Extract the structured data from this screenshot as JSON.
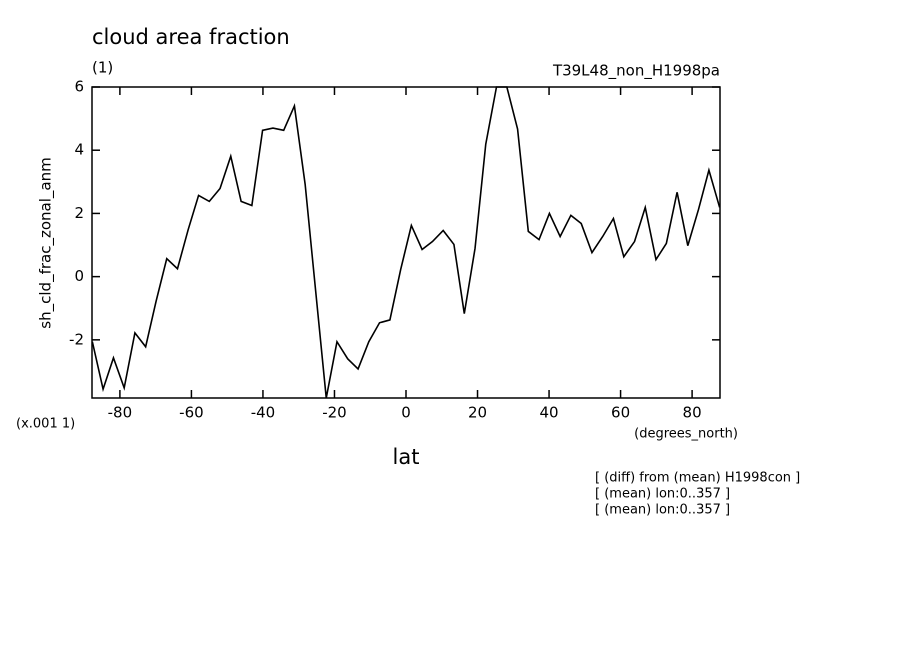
{
  "chart_data": {
    "type": "line",
    "title": "cloud area fraction",
    "subtitle": "(1)",
    "run_label": "T39L48_non_H1998pa",
    "y_label": "sh_cld_frac_zonal_anm",
    "y_scale_label": "(x.001 1)",
    "x_unit_label": "(degrees_north)",
    "x_label": "lat",
    "annotations": [
      "[ (diff) from (mean) H1998con ]",
      "[ (mean) lon:0..357 ]",
      "[ (mean) lon:0..357 ]"
    ],
    "xlim": [
      -87.8,
      87.8
    ],
    "ylim": [
      -3.84,
      6
    ],
    "xticks": [
      -80,
      -60,
      -40,
      -20,
      0,
      20,
      40,
      60,
      80
    ],
    "yticks": [
      -2,
      0,
      2,
      4,
      6
    ],
    "color": "#000000",
    "x": [
      -87.7,
      -84.7,
      -81.8,
      -78.8,
      -75.8,
      -72.8,
      -69.9,
      -66.9,
      -63.9,
      -60.9,
      -58.0,
      -55.0,
      -52.0,
      -49.0,
      -46.1,
      -43.1,
      -40.1,
      -37.2,
      -34.2,
      -31.2,
      -28.2,
      -25.3,
      -22.3,
      -19.3,
      -16.3,
      -13.4,
      -10.4,
      -7.4,
      -4.5,
      -1.5,
      1.5,
      4.5,
      7.4,
      10.4,
      13.4,
      16.3,
      19.3,
      22.3,
      25.3,
      28.2,
      31.2,
      34.2,
      37.2,
      40.1,
      43.1,
      46.1,
      49.0,
      52.0,
      55.0,
      58.0,
      60.9,
      63.9,
      66.9,
      69.9,
      72.8,
      75.8,
      78.8,
      81.8,
      84.7,
      87.7
    ],
    "values": [
      -2.06,
      -3.56,
      -2.57,
      -3.52,
      -1.78,
      -2.22,
      -0.79,
      0.57,
      0.25,
      1.49,
      2.57,
      2.38,
      2.79,
      3.81,
      2.38,
      2.25,
      4.63,
      4.7,
      4.63,
      5.4,
      2.92,
      -0.41,
      -3.84,
      -2.06,
      -2.6,
      -2.92,
      -2.06,
      -1.46,
      -1.37,
      0.22,
      1.62,
      0.86,
      1.11,
      1.46,
      1.02,
      -1.17,
      0.89,
      4.19,
      6.0,
      6.0,
      4.67,
      1.43,
      1.17,
      2.0,
      1.27,
      1.94,
      1.68,
      0.76,
      1.27,
      1.84,
      0.63,
      1.11,
      2.19,
      0.54,
      1.05,
      2.67,
      0.98,
      2.13,
      3.37,
      2.19
    ]
  }
}
